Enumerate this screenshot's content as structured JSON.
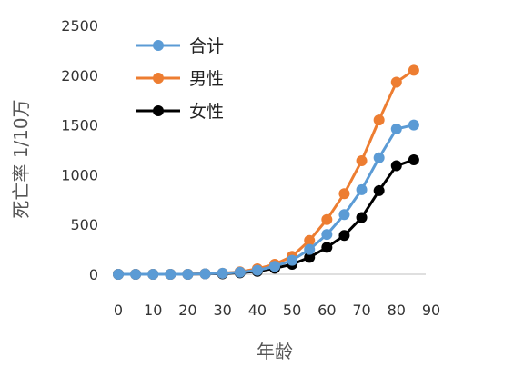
{
  "chart_data": {
    "type": "line",
    "title": "",
    "xlabel": "年龄",
    "ylabel": "死亡率 1/10万",
    "xlim": [
      0,
      90
    ],
    "ylim": [
      0,
      2500
    ],
    "xticks": [
      0,
      10,
      20,
      30,
      40,
      50,
      60,
      70,
      80,
      90
    ],
    "yticks": [
      0,
      500,
      1000,
      1500,
      2000,
      2500
    ],
    "grid": false,
    "legend_position": "top-left",
    "x": [
      0,
      5,
      10,
      15,
      20,
      25,
      30,
      35,
      40,
      45,
      50,
      55,
      60,
      65,
      70,
      75,
      80,
      85
    ],
    "series": [
      {
        "name": "合计",
        "color": "#5b9bd5",
        "values": [
          0,
          0,
          0,
          0,
          0,
          5,
          10,
          20,
          40,
          80,
          140,
          250,
          400,
          600,
          850,
          1170,
          1460,
          1500
        ]
      },
      {
        "name": "男性",
        "color": "#ed7d31",
        "values": [
          0,
          0,
          0,
          0,
          0,
          5,
          10,
          25,
          55,
          100,
          180,
          340,
          550,
          810,
          1140,
          1550,
          1930,
          2050
        ]
      },
      {
        "name": "女性",
        "color": "#000000",
        "values": [
          0,
          0,
          0,
          0,
          0,
          5,
          5,
          15,
          30,
          60,
          100,
          170,
          270,
          390,
          570,
          840,
          1090,
          1150
        ]
      }
    ]
  }
}
